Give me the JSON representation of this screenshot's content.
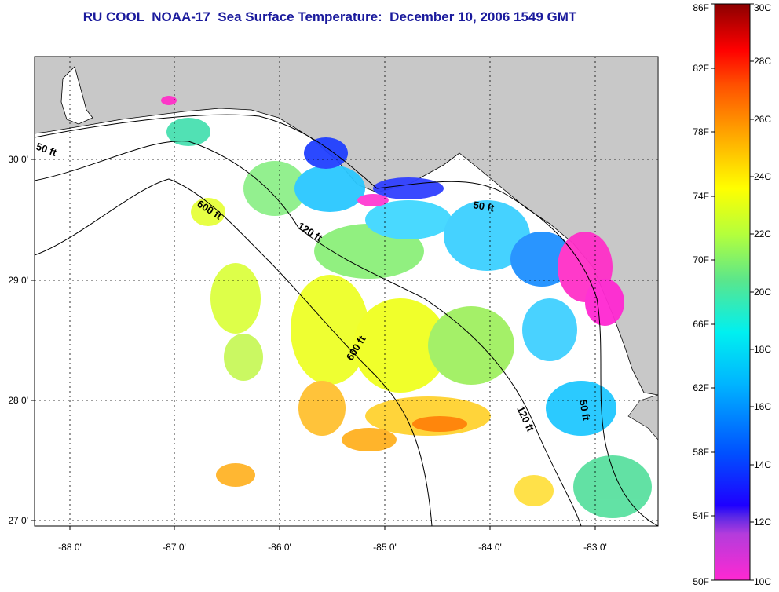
{
  "title": "RU COOL  NOAA-17  Sea Surface Temperature:  December 10, 2006 1549 GMT",
  "colors": {
    "land": "#c8c8c8",
    "water": "#ffffff",
    "grid": "#000000",
    "title": "#1a1a9c"
  },
  "axes": {
    "lon_ticks": [
      "-88 0'",
      "-87 0'",
      "-86 0'",
      "-85 0'",
      "-84 0'",
      "-83 0'"
    ],
    "lat_ticks": [
      "30 0'",
      "29 0'",
      "28 0'",
      "27 0'"
    ]
  },
  "colorbar": {
    "fahrenheit_labels": [
      "86F",
      "82F",
      "78F",
      "74F",
      "70F",
      "66F",
      "62F",
      "58F",
      "54F",
      "50F"
    ],
    "celsius_labels": [
      "30C",
      "28C",
      "26C",
      "24C",
      "22C",
      "20C",
      "18C",
      "16C",
      "14C",
      "12C",
      "10C"
    ],
    "min_c": 10,
    "max_c": 30
  },
  "isobaths": {
    "fifty_west": "50 ft",
    "six_hundred_west": "600 ft",
    "one_twenty_mid": "120 ft",
    "fifty_east": "50 ft",
    "six_hundred_mid": "600 ft",
    "one_twenty_south": "120 ft",
    "fifty_south": "50 ft"
  }
}
